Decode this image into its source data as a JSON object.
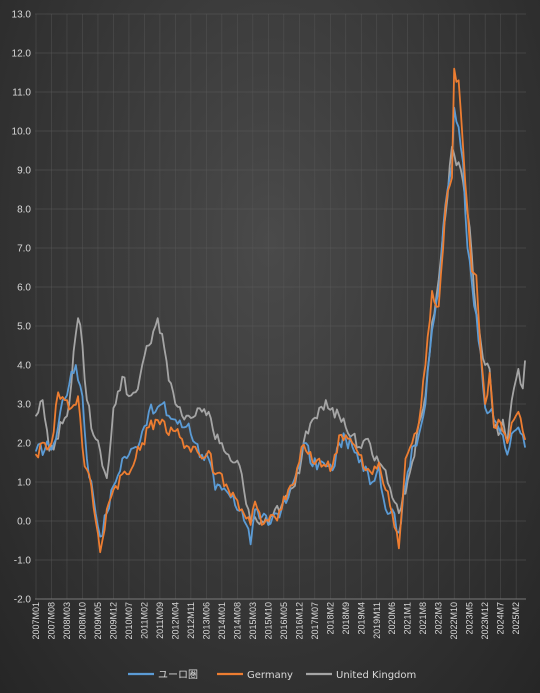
{
  "chart_data": {
    "type": "line",
    "title": "",
    "xlabel": "",
    "ylabel": "",
    "ylim": [
      -2.0,
      13.0
    ],
    "ystep": 1.0,
    "grid": true,
    "legend_position": "bottom",
    "y_ticks": [
      "-2.0",
      "-1.0",
      "0.0",
      "1.0",
      "2.0",
      "3.0",
      "4.0",
      "5.0",
      "6.0",
      "7.0",
      "8.0",
      "9.0",
      "10.0",
      "11.0",
      "12.0",
      "13.0"
    ],
    "x_ticks": [
      {
        "label": "2007M01",
        "index": 0
      },
      {
        "label": "2007M08",
        "index": 7
      },
      {
        "label": "2008M03",
        "index": 14
      },
      {
        "label": "2008M10",
        "index": 21
      },
      {
        "label": "2009M05",
        "index": 28
      },
      {
        "label": "2009M12",
        "index": 35
      },
      {
        "label": "2010M07",
        "index": 42
      },
      {
        "label": "2011M02",
        "index": 49
      },
      {
        "label": "2011M09",
        "index": 56
      },
      {
        "label": "2012M04",
        "index": 63
      },
      {
        "label": "2012M11",
        "index": 70
      },
      {
        "label": "2013M06",
        "index": 77
      },
      {
        "label": "2014M01",
        "index": 84
      },
      {
        "label": "2014M08",
        "index": 91
      },
      {
        "label": "2015M03",
        "index": 98
      },
      {
        "label": "2015M10",
        "index": 105
      },
      {
        "label": "2016M05",
        "index": 112
      },
      {
        "label": "2016M12",
        "index": 119
      },
      {
        "label": "2017M07",
        "index": 126
      },
      {
        "label": "2018M2",
        "index": 133
      },
      {
        "label": "2018M9",
        "index": 140
      },
      {
        "label": "2019M4",
        "index": 147
      },
      {
        "label": "2019M11",
        "index": 154
      },
      {
        "label": "2020M6",
        "index": 161
      },
      {
        "label": "2021M1",
        "index": 168
      },
      {
        "label": "2021M8",
        "index": 175
      },
      {
        "label": "2022M3",
        "index": 182
      },
      {
        "label": "2022M10",
        "index": 189
      },
      {
        "label": "2023M5",
        "index": 196
      },
      {
        "label": "2023M12",
        "index": 203
      },
      {
        "label": "2024M7",
        "index": 210
      },
      {
        "label": "2025M2",
        "index": 217
      }
    ],
    "n_points": 222,
    "series": [
      {
        "name": "ユーロ圏",
        "color": "#5b9bd5",
        "anchors": [
          [
            0,
            1.8
          ],
          [
            6,
            1.9
          ],
          [
            9,
            2.1
          ],
          [
            12,
            3.1
          ],
          [
            15,
            3.5
          ],
          [
            18,
            4.0
          ],
          [
            21,
            3.2
          ],
          [
            23,
            1.6
          ],
          [
            26,
            0.6
          ],
          [
            29,
            -0.4
          ],
          [
            32,
            0.2
          ],
          [
            35,
            0.9
          ],
          [
            36,
            1.0
          ],
          [
            39,
            1.6
          ],
          [
            42,
            1.7
          ],
          [
            45,
            1.9
          ],
          [
            48,
            2.3
          ],
          [
            51,
            2.8
          ],
          [
            54,
            2.8
          ],
          [
            57,
            3.0
          ],
          [
            60,
            2.7
          ],
          [
            63,
            2.6
          ],
          [
            66,
            2.4
          ],
          [
            69,
            2.5
          ],
          [
            72,
            2.0
          ],
          [
            75,
            1.7
          ],
          [
            78,
            1.6
          ],
          [
            81,
            0.8
          ],
          [
            84,
            0.8
          ],
          [
            87,
            0.7
          ],
          [
            90,
            0.4
          ],
          [
            93,
            0.3
          ],
          [
            96,
            -0.2
          ],
          [
            97,
            -0.6
          ],
          [
            99,
            0.3
          ],
          [
            102,
            0.1
          ],
          [
            105,
            -0.1
          ],
          [
            108,
            0.2
          ],
          [
            111,
            0.3
          ],
          [
            114,
            0.6
          ],
          [
            117,
            1.1
          ],
          [
            120,
            1.8
          ],
          [
            122,
            2.0
          ],
          [
            125,
            1.4
          ],
          [
            128,
            1.5
          ],
          [
            131,
            1.4
          ],
          [
            134,
            1.3
          ],
          [
            137,
            2.0
          ],
          [
            140,
            2.1
          ],
          [
            143,
            1.9
          ],
          [
            146,
            1.5
          ],
          [
            149,
            1.4
          ],
          [
            152,
            1.0
          ],
          [
            155,
            1.4
          ],
          [
            158,
            0.3
          ],
          [
            161,
            0.3
          ],
          [
            164,
            -0.3
          ],
          [
            167,
            0.9
          ],
          [
            170,
            1.9
          ],
          [
            173,
            2.2
          ],
          [
            176,
            3.0
          ],
          [
            179,
            4.9
          ],
          [
            182,
            5.9
          ],
          [
            185,
            8.1
          ],
          [
            188,
            9.1
          ],
          [
            189,
            10.6
          ],
          [
            191,
            10.1
          ],
          [
            193,
            9.2
          ],
          [
            195,
            7.0
          ],
          [
            197,
            6.1
          ],
          [
            199,
            5.3
          ],
          [
            201,
            4.3
          ],
          [
            203,
            2.9
          ],
          [
            205,
            2.8
          ],
          [
            207,
            2.6
          ],
          [
            209,
            2.4
          ],
          [
            211,
            2.2
          ],
          [
            213,
            1.7
          ],
          [
            216,
            2.3
          ],
          [
            218,
            2.4
          ],
          [
            220,
            2.2
          ],
          [
            221,
            1.9
          ]
        ]
      },
      {
        "name": "Germany",
        "color": "#ed7d31",
        "anchors": [
          [
            0,
            1.7
          ],
          [
            4,
            2.0
          ],
          [
            7,
            2.0
          ],
          [
            10,
            3.3
          ],
          [
            13,
            3.1
          ],
          [
            16,
            2.9
          ],
          [
            19,
            3.2
          ],
          [
            22,
            1.4
          ],
          [
            25,
            0.9
          ],
          [
            27,
            0.0
          ],
          [
            29,
            -0.8
          ],
          [
            32,
            0.3
          ],
          [
            35,
            0.8
          ],
          [
            36,
            0.9
          ],
          [
            39,
            1.2
          ],
          [
            42,
            1.2
          ],
          [
            45,
            1.6
          ],
          [
            48,
            2.0
          ],
          [
            51,
            2.4
          ],
          [
            54,
            2.6
          ],
          [
            57,
            2.6
          ],
          [
            60,
            2.2
          ],
          [
            63,
            2.3
          ],
          [
            66,
            2.1
          ],
          [
            69,
            1.9
          ],
          [
            72,
            1.9
          ],
          [
            75,
            1.6
          ],
          [
            78,
            1.8
          ],
          [
            81,
            1.2
          ],
          [
            84,
            1.2
          ],
          [
            87,
            0.8
          ],
          [
            90,
            0.6
          ],
          [
            93,
            0.3
          ],
          [
            96,
            0.1
          ],
          [
            97,
            -0.1
          ],
          [
            99,
            0.5
          ],
          [
            102,
            -0.1
          ],
          [
            105,
            0.0
          ],
          [
            108,
            0.1
          ],
          [
            111,
            0.3
          ],
          [
            114,
            0.8
          ],
          [
            117,
            1.0
          ],
          [
            120,
            1.9
          ],
          [
            122,
            1.8
          ],
          [
            125,
            1.5
          ],
          [
            128,
            1.6
          ],
          [
            131,
            1.4
          ],
          [
            134,
            1.4
          ],
          [
            137,
            2.2
          ],
          [
            140,
            2.2
          ],
          [
            143,
            2.0
          ],
          [
            146,
            1.7
          ],
          [
            149,
            1.3
          ],
          [
            152,
            1.2
          ],
          [
            155,
            1.5
          ],
          [
            158,
            0.8
          ],
          [
            161,
            0.2
          ],
          [
            164,
            -0.7
          ],
          [
            167,
            1.6
          ],
          [
            170,
            2.0
          ],
          [
            173,
            2.5
          ],
          [
            176,
            4.0
          ],
          [
            179,
            5.9
          ],
          [
            182,
            5.5
          ],
          [
            185,
            8.0
          ],
          [
            188,
            8.8
          ],
          [
            189,
            11.6
          ],
          [
            191,
            11.3
          ],
          [
            193,
            9.6
          ],
          [
            195,
            8.0
          ],
          [
            197,
            6.4
          ],
          [
            199,
            6.3
          ],
          [
            201,
            4.3
          ],
          [
            203,
            3.0
          ],
          [
            205,
            3.8
          ],
          [
            207,
            2.4
          ],
          [
            209,
            2.6
          ],
          [
            211,
            2.3
          ],
          [
            213,
            2.0
          ],
          [
            216,
            2.6
          ],
          [
            218,
            2.8
          ],
          [
            220,
            2.3
          ],
          [
            221,
            2.1
          ]
        ]
      },
      {
        "name": "United Kingdom",
        "color": "#a5a5a5",
        "anchors": [
          [
            0,
            2.7
          ],
          [
            3,
            3.1
          ],
          [
            6,
            1.8
          ],
          [
            9,
            2.1
          ],
          [
            12,
            2.5
          ],
          [
            15,
            3.0
          ],
          [
            18,
            4.8
          ],
          [
            19,
            5.2
          ],
          [
            21,
            4.5
          ],
          [
            23,
            3.1
          ],
          [
            26,
            2.2
          ],
          [
            29,
            1.8
          ],
          [
            32,
            1.1
          ],
          [
            35,
            2.9
          ],
          [
            36,
            3.0
          ],
          [
            39,
            3.7
          ],
          [
            42,
            3.2
          ],
          [
            45,
            3.3
          ],
          [
            48,
            4.0
          ],
          [
            51,
            4.5
          ],
          [
            54,
            5.0
          ],
          [
            55,
            5.2
          ],
          [
            57,
            4.8
          ],
          [
            60,
            3.6
          ],
          [
            63,
            3.0
          ],
          [
            66,
            2.7
          ],
          [
            69,
            2.7
          ],
          [
            72,
            2.7
          ],
          [
            75,
            2.8
          ],
          [
            78,
            2.8
          ],
          [
            81,
            2.1
          ],
          [
            84,
            2.0
          ],
          [
            87,
            1.7
          ],
          [
            90,
            1.5
          ],
          [
            93,
            1.2
          ],
          [
            96,
            0.3
          ],
          [
            97,
            0.0
          ],
          [
            99,
            0.1
          ],
          [
            102,
            0.0
          ],
          [
            105,
            -0.1
          ],
          [
            108,
            0.3
          ],
          [
            111,
            0.4
          ],
          [
            114,
            0.6
          ],
          [
            117,
            0.9
          ],
          [
            120,
            1.6
          ],
          [
            122,
            2.3
          ],
          [
            125,
            2.6
          ],
          [
            128,
            2.9
          ],
          [
            131,
            3.1
          ],
          [
            134,
            2.9
          ],
          [
            137,
            2.7
          ],
          [
            140,
            2.4
          ],
          [
            143,
            2.2
          ],
          [
            146,
            1.9
          ],
          [
            149,
            2.1
          ],
          [
            152,
            1.7
          ],
          [
            155,
            1.5
          ],
          [
            158,
            1.3
          ],
          [
            161,
            0.6
          ],
          [
            164,
            0.2
          ],
          [
            167,
            0.7
          ],
          [
            170,
            1.5
          ],
          [
            173,
            2.5
          ],
          [
            176,
            3.2
          ],
          [
            179,
            5.1
          ],
          [
            182,
            6.2
          ],
          [
            185,
            7.8
          ],
          [
            188,
            9.6
          ],
          [
            189,
            9.4
          ],
          [
            191,
            9.2
          ],
          [
            193,
            8.7
          ],
          [
            195,
            7.9
          ],
          [
            197,
            6.8
          ],
          [
            199,
            5.3
          ],
          [
            201,
            4.6
          ],
          [
            203,
            4.0
          ],
          [
            205,
            3.9
          ],
          [
            207,
            2.4
          ],
          [
            209,
            2.2
          ],
          [
            211,
            2.6
          ],
          [
            213,
            2.0
          ],
          [
            216,
            3.4
          ],
          [
            218,
            3.9
          ],
          [
            220,
            3.4
          ],
          [
            221,
            4.1
          ]
        ]
      }
    ]
  }
}
